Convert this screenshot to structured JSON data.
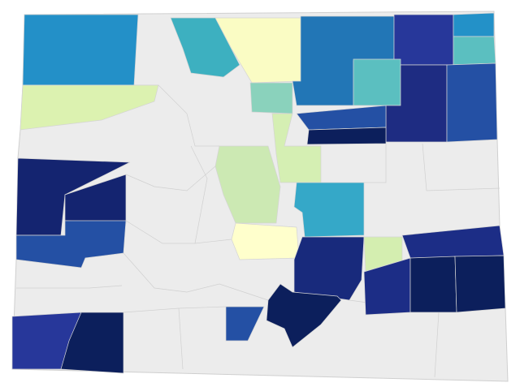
{
  "map": {
    "regions": [
      {
        "color": "#2390c8"
      },
      {
        "color": "#3db0c0"
      },
      {
        "color": "#fafcc4"
      },
      {
        "color": "#2276b6"
      },
      {
        "color": "#27379a"
      },
      {
        "color": "#2391c8"
      },
      {
        "color": "#5bbfc0"
      },
      {
        "color": "#5bbfc0"
      },
      {
        "color": "#1e2c82"
      },
      {
        "color": "#2450a4"
      },
      {
        "color": "#8ad2bc"
      },
      {
        "color": "#dcf2b0"
      },
      {
        "color": "#2450a4"
      },
      {
        "color": "#0c1f5c"
      },
      {
        "color": "#cce9b3"
      },
      {
        "color": "#d5efb3"
      },
      {
        "color": "#35a8c8"
      },
      {
        "color": "#ffffcc"
      },
      {
        "color": "#182a7c"
      },
      {
        "color": "#1c2d86"
      },
      {
        "color": "#d4eeb0"
      },
      {
        "color": "#1c2d86"
      },
      {
        "color": "#0c1f5c"
      },
      {
        "color": "#0c1f5c"
      },
      {
        "color": "#0c1f5c"
      },
      {
        "color": "#2450a4"
      },
      {
        "color": "#142470"
      },
      {
        "color": "#142470"
      },
      {
        "color": "#2450a4"
      },
      {
        "color": "#27379a"
      },
      {
        "color": "#0c1f5c"
      }
    ]
  }
}
